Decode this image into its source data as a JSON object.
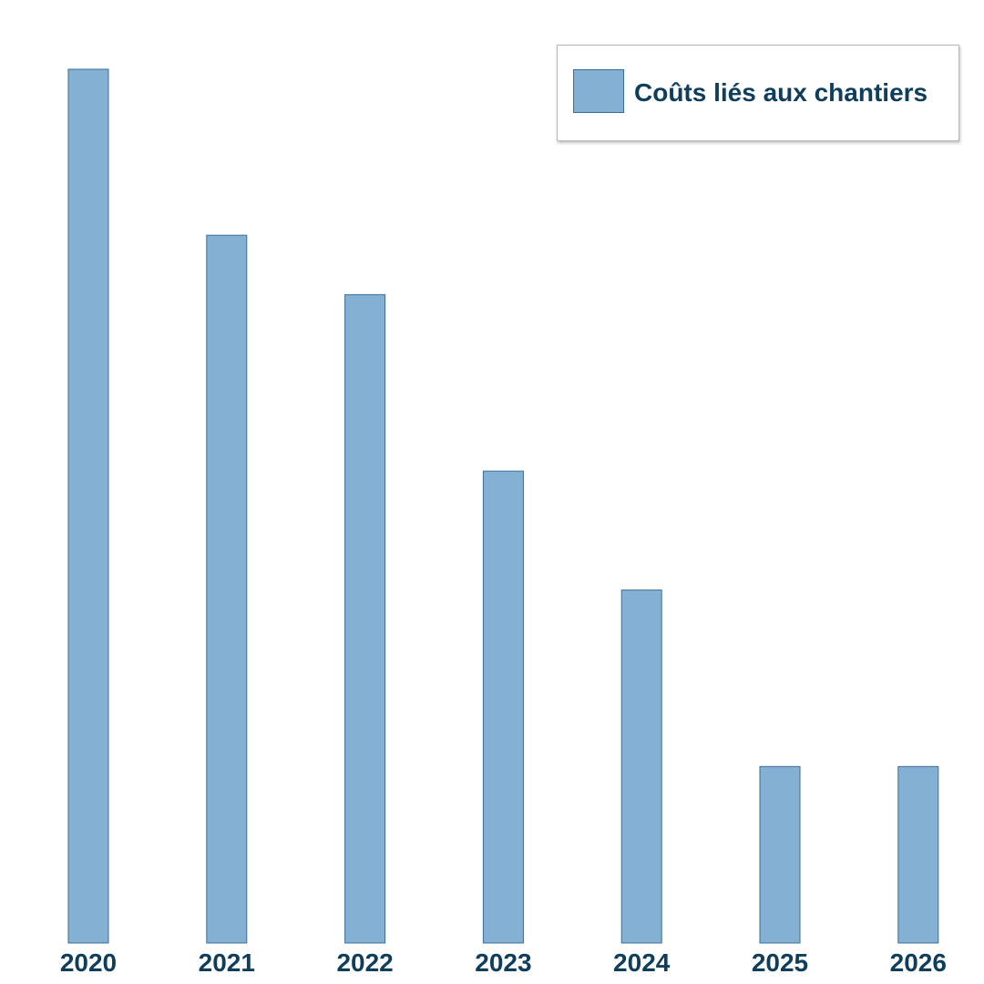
{
  "colors": {
    "bar_fill": "#84b0d4",
    "bar_stroke": "#3b6e98",
    "text": "#0f3d5c"
  },
  "legend": {
    "label": "Coûts liés aux chantiers"
  },
  "chart_data": {
    "type": "bar",
    "categories": [
      "2020",
      "2021",
      "2022",
      "2023",
      "2024",
      "2025",
      "2026"
    ],
    "series": [
      {
        "name": "Coûts liés aux chantiers",
        "values": [
          100,
          81,
          74.2,
          54,
          40.4,
          20.2,
          20.2
        ]
      }
    ],
    "title": "",
    "xlabel": "",
    "ylabel": "",
    "ylim": [
      0,
      100
    ],
    "grid": false,
    "legend_position": "top-right"
  }
}
